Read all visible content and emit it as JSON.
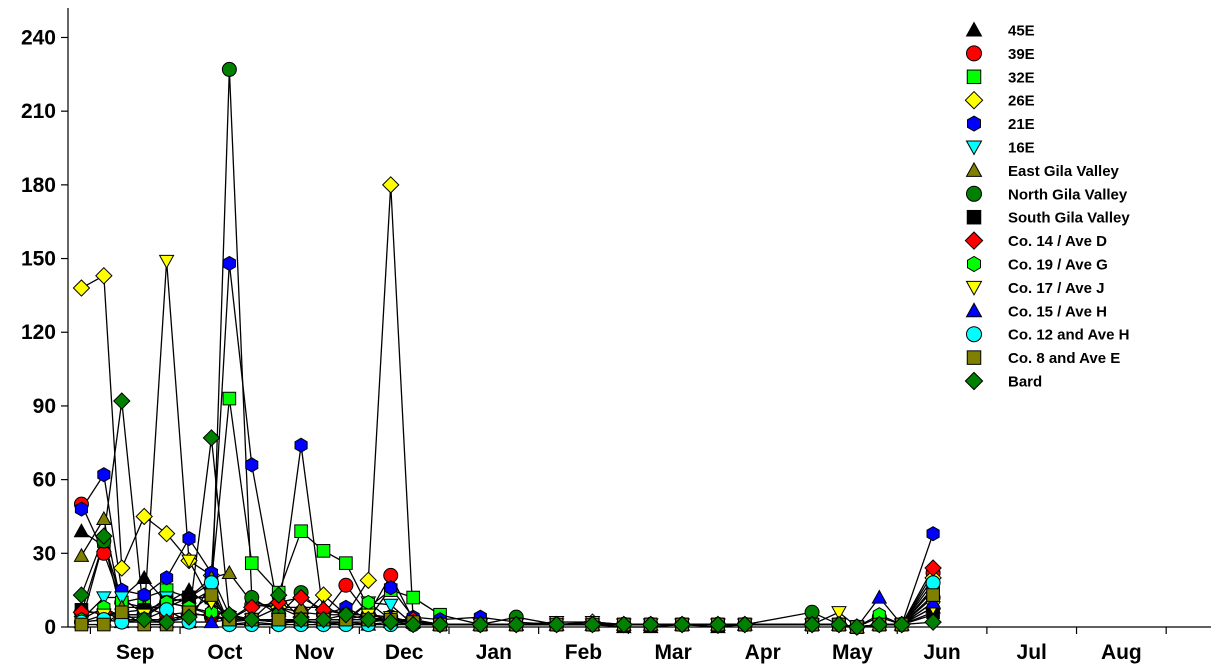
{
  "chart_data": {
    "type": "line",
    "title": "",
    "xlabel": "",
    "ylabel": "",
    "ylim": [
      0,
      252
    ],
    "xlim": [
      -0.75,
      12.0
    ],
    "yticks": [
      0,
      30,
      60,
      90,
      120,
      150,
      180,
      210,
      240
    ],
    "xtick_labels": [
      "Sep",
      "Oct",
      "Nov",
      "Dec",
      "Jan",
      "Feb",
      "Mar",
      "Apr",
      "May",
      "Jun",
      "Jul",
      "Aug"
    ],
    "grid": false,
    "legend_position": "top-right",
    "x": [
      -0.6,
      -0.35,
      -0.15,
      0.1,
      0.35,
      0.6,
      0.85,
      1.05,
      1.3,
      1.6,
      1.85,
      2.1,
      2.35,
      2.6,
      2.85,
      3.1,
      3.4,
      3.85,
      4.25,
      4.7,
      5.1,
      5.45,
      5.75,
      6.1,
      6.5,
      6.8,
      7.55,
      7.85,
      8.05,
      8.3,
      8.55,
      8.9
    ],
    "series": [
      {
        "name": "45E",
        "marker": "triangle-up",
        "color": "#000000",
        "values": [
          39,
          33,
          12,
          20,
          10,
          15,
          8,
          4,
          3,
          2,
          2,
          2,
          2,
          1,
          2,
          2,
          1,
          1,
          1,
          1,
          1,
          0,
          0,
          1,
          0,
          1,
          1,
          1,
          0,
          1,
          1,
          8
        ]
      },
      {
        "name": "39E",
        "marker": "circle",
        "color": "#ff0000",
        "values": [
          50,
          30,
          10,
          8,
          5,
          6,
          4,
          3,
          9,
          8,
          6,
          5,
          17,
          5,
          21,
          3,
          1,
          1,
          1,
          1,
          1,
          1,
          1,
          1,
          1,
          1,
          1,
          1,
          0,
          1,
          1,
          22
        ]
      },
      {
        "name": "32E",
        "marker": "square",
        "color": "#00ff00",
        "values": [
          2,
          35,
          10,
          12,
          15,
          12,
          18,
          93,
          26,
          14,
          39,
          31,
          26,
          8,
          15,
          12,
          5,
          1,
          1,
          1,
          1,
          1,
          1,
          1,
          1,
          1,
          1,
          1,
          0,
          1,
          1,
          15
        ]
      },
      {
        "name": "26E",
        "marker": "diamond",
        "color": "#ffff00",
        "values": [
          138,
          143,
          24,
          45,
          38,
          27,
          21,
          5,
          3,
          8,
          4,
          13,
          5,
          19,
          180,
          3,
          1,
          1,
          1,
          1,
          2,
          1,
          1,
          1,
          1,
          1,
          1,
          1,
          0,
          1,
          1,
          20
        ]
      },
      {
        "name": "21E",
        "marker": "hexagon",
        "color": "#0000ff",
        "values": [
          48,
          62,
          15,
          13,
          20,
          36,
          22,
          148,
          66,
          6,
          74,
          5,
          8,
          3,
          16,
          4,
          3,
          4,
          2,
          1,
          1,
          1,
          1,
          1,
          1,
          1,
          1,
          1,
          0,
          1,
          1,
          38
        ]
      },
      {
        "name": "16E",
        "marker": "triangle-down",
        "color": "#00ffff",
        "values": [
          3,
          12,
          12,
          5,
          12,
          10,
          15,
          1,
          2,
          1,
          3,
          1,
          2,
          10,
          9,
          1,
          1,
          1,
          1,
          1,
          1,
          1,
          1,
          1,
          1,
          1,
          1,
          1,
          0,
          1,
          1,
          5
        ]
      },
      {
        "name": "East Gila Valley",
        "marker": "triangle-up",
        "color": "#808000",
        "values": [
          29,
          44,
          8,
          8,
          8,
          12,
          20,
          22,
          10,
          8,
          8,
          8,
          5,
          3,
          4,
          2,
          1,
          1,
          1,
          1,
          1,
          1,
          1,
          1,
          1,
          1,
          1,
          1,
          0,
          1,
          1,
          10
        ]
      },
      {
        "name": "North Gila Valley",
        "marker": "circle",
        "color": "#008000",
        "values": [
          6,
          35,
          5,
          5,
          10,
          8,
          5,
          227,
          12,
          5,
          14,
          5,
          5,
          5,
          4,
          2,
          1,
          1,
          4,
          1,
          1,
          1,
          1,
          1,
          1,
          1,
          6,
          1,
          0,
          4,
          1,
          12
        ]
      },
      {
        "name": "South Gila Valley",
        "marker": "square",
        "color": "#000000",
        "values": [
          7,
          5,
          6,
          7,
          10,
          12,
          12,
          2,
          3,
          2,
          2,
          2,
          2,
          2,
          3,
          2,
          1,
          1,
          1,
          1,
          1,
          1,
          1,
          1,
          1,
          1,
          1,
          1,
          0,
          1,
          1,
          6
        ]
      },
      {
        "name": "Co. 14 / Ave D",
        "marker": "diamond",
        "color": "#ff0000",
        "values": [
          6,
          6,
          3,
          3,
          3,
          5,
          5,
          3,
          8,
          10,
          12,
          7,
          5,
          5,
          3,
          3,
          1,
          1,
          1,
          1,
          1,
          1,
          1,
          1,
          1,
          1,
          1,
          1,
          0,
          1,
          1,
          24
        ]
      },
      {
        "name": "Co. 19 / Ave G",
        "marker": "hexagon",
        "color": "#00ff00",
        "values": [
          3,
          8,
          4,
          4,
          10,
          8,
          6,
          5,
          3,
          3,
          3,
          3,
          3,
          10,
          3,
          2,
          1,
          1,
          1,
          1,
          1,
          1,
          1,
          1,
          1,
          1,
          1,
          1,
          0,
          5,
          1,
          16
        ]
      },
      {
        "name": "Co. 17 / Ave J",
        "marker": "triangle-down",
        "color": "#ffff00",
        "values": [
          2,
          5,
          5,
          5,
          149,
          27,
          10,
          4,
          3,
          2,
          3,
          3,
          3,
          5,
          4,
          2,
          1,
          1,
          1,
          2,
          2,
          1,
          1,
          1,
          1,
          1,
          1,
          6,
          0,
          1,
          1,
          8
        ]
      },
      {
        "name": "Co. 15 / Ave H",
        "marker": "triangle-up",
        "color": "#0000ff",
        "values": [
          2,
          3,
          2,
          2,
          2,
          2,
          2,
          3,
          3,
          3,
          3,
          3,
          3,
          3,
          4,
          2,
          1,
          1,
          1,
          1,
          1,
          1,
          1,
          1,
          1,
          1,
          1,
          1,
          0,
          12,
          1,
          10
        ]
      },
      {
        "name": "Co. 12 and Ave H",
        "marker": "circle",
        "color": "#00ffff",
        "values": [
          2,
          3,
          2,
          3,
          7,
          2,
          18,
          1,
          1,
          1,
          1,
          1,
          1,
          1,
          1,
          1,
          1,
          1,
          1,
          1,
          1,
          1,
          1,
          1,
          1,
          1,
          1,
          1,
          0,
          1,
          1,
          18
        ]
      },
      {
        "name": "Co. 8 and Ave E",
        "marker": "square",
        "color": "#808000",
        "values": [
          1,
          1,
          6,
          1,
          1,
          6,
          13,
          3,
          3,
          3,
          3,
          3,
          3,
          3,
          3,
          2,
          1,
          1,
          1,
          1,
          1,
          1,
          1,
          1,
          1,
          1,
          1,
          1,
          0,
          1,
          1,
          13
        ]
      },
      {
        "name": "Bard",
        "marker": "diamond",
        "color": "#008000",
        "values": [
          13,
          37,
          92,
          3,
          2,
          4,
          77,
          5,
          3,
          13,
          3,
          3,
          5,
          3,
          2,
          1,
          1,
          1,
          1,
          1,
          1,
          1,
          1,
          1,
          1,
          1,
          1,
          1,
          0,
          1,
          1,
          2
        ]
      }
    ]
  }
}
